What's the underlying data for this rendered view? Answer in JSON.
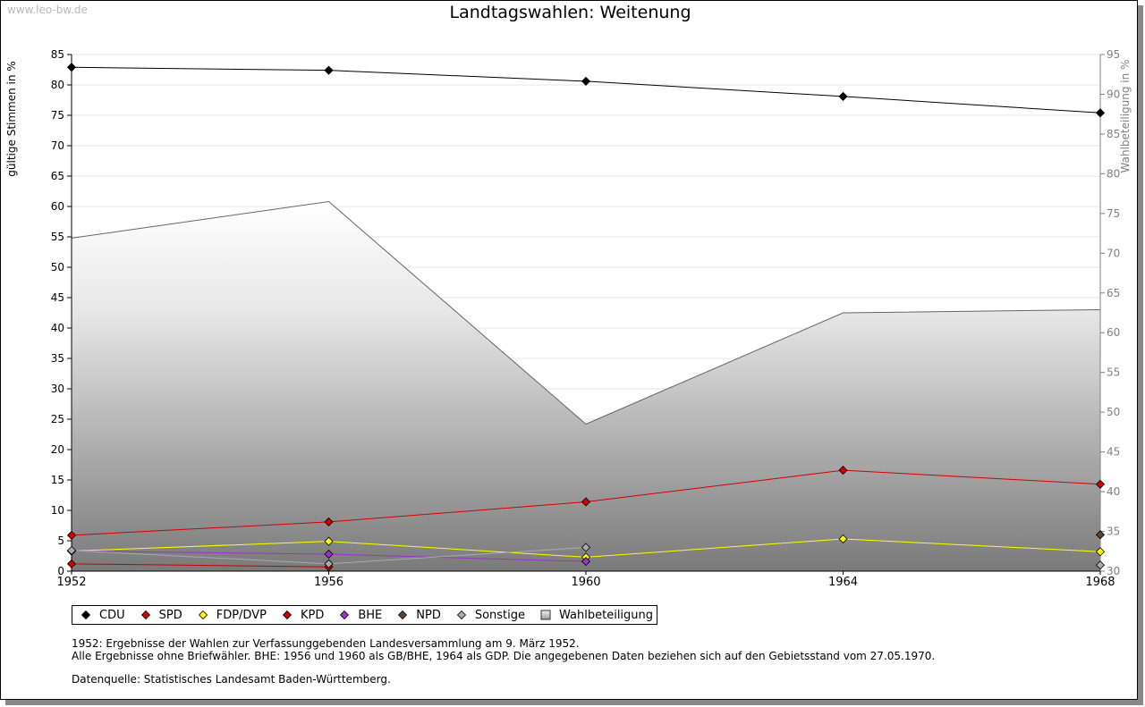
{
  "watermark": "www.leo-bw.de",
  "chart_data": {
    "type": "line",
    "title": "Landtagswahlen: Weitenung",
    "ylabel": "gültige Stimmen in %",
    "y2label": "Wahlbeteiligung in %",
    "ylim": [
      0,
      85
    ],
    "y2lim": [
      30,
      95
    ],
    "yticks": [
      "0",
      "5",
      "10",
      "15",
      "20",
      "25",
      "30",
      "35",
      "40",
      "45",
      "50",
      "55",
      "60",
      "65",
      "70",
      "75",
      "80",
      "85"
    ],
    "y2ticks": [
      "30",
      "35",
      "40",
      "45",
      "50",
      "55",
      "60",
      "65",
      "70",
      "75",
      "80",
      "85",
      "90",
      "95"
    ],
    "x": [
      "1952",
      "1956",
      "1960",
      "1964",
      "1968"
    ],
    "grid": true,
    "legend_position": "bottom",
    "series": [
      {
        "name": "CDU",
        "color": "#000000",
        "axis": "left",
        "type": "line",
        "values": [
          82.9,
          82.4,
          80.6,
          78.1,
          75.4
        ]
      },
      {
        "name": "SPD",
        "color": "#d40000",
        "axis": "left",
        "type": "line",
        "values": [
          5.9,
          8.1,
          11.4,
          16.6,
          14.3
        ]
      },
      {
        "name": "FDP/DVP",
        "color": "#ffff00",
        "axis": "left",
        "type": "line",
        "values": [
          3.3,
          4.9,
          2.3,
          5.3,
          3.2
        ]
      },
      {
        "name": "KPD",
        "color": "#c80000",
        "axis": "left",
        "type": "line",
        "values": [
          1.2,
          0.7,
          null,
          null,
          null
        ]
      },
      {
        "name": "BHE",
        "color": "#9933cc",
        "axis": "left",
        "type": "line",
        "values": [
          3.3,
          2.8,
          1.6,
          null,
          null
        ]
      },
      {
        "name": "NPD",
        "color": "#5a4632",
        "axis": "left",
        "type": "line",
        "values": [
          null,
          null,
          null,
          null,
          6.0
        ]
      },
      {
        "name": "Sonstige",
        "color": "#aaaaaa",
        "axis": "left",
        "type": "line",
        "values": [
          3.4,
          1.2,
          3.9,
          null,
          1.0
        ]
      },
      {
        "name": "Wahlbeteiligung",
        "color": "#c8c8c8",
        "axis": "right",
        "type": "area",
        "values": [
          71.9,
          76.5,
          48.5,
          62.5,
          62.9
        ]
      }
    ]
  },
  "notes": {
    "line1": "1952: Ergebnisse der Wahlen zur Verfassunggebenden Landesversammlung am 9. März 1952.",
    "line2": "Alle Ergebnisse ohne Briefwähler. BHE: 1956 und 1960 als GB/BHE, 1964 als GDP. Die angegebenen Daten beziehen sich auf den Gebietsstand vom 27.05.1970.",
    "source": "Datenquelle: Statistisches Landesamt Baden-Württemberg."
  }
}
